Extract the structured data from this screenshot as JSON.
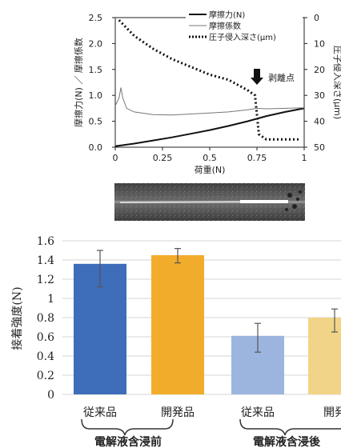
{
  "chart_data": [
    {
      "type": "line",
      "xlabel": "荷重(N)",
      "ylabel": "摩擦力(N) ／ 摩擦係数",
      "y2label": "圧子侵入深さ(μm)",
      "xlim": [
        0,
        1
      ],
      "ylim": [
        0,
        2.5
      ],
      "y2lim": [
        0,
        50
      ],
      "y2_inverted": true,
      "x_ticks": [
        "0",
        "0.25",
        "0.5",
        "0.75",
        "1"
      ],
      "y_ticks": [
        "0.0",
        "0.5",
        "1.0",
        "1.5",
        "2.0",
        "2.5"
      ],
      "y2_ticks": [
        "0",
        "10",
        "20",
        "30",
        "40",
        "50"
      ],
      "legend_position": "top-right",
      "annotation": "剥離点",
      "annotation_x": 0.75,
      "series": [
        {
          "name": "摩擦力(N)",
          "style": "solid-thick",
          "axis": "left",
          "x": [
            0,
            0.1,
            0.2,
            0.3,
            0.4,
            0.5,
            0.6,
            0.7,
            0.75,
            0.8,
            0.9,
            1.0
          ],
          "y": [
            0.02,
            0.07,
            0.13,
            0.19,
            0.26,
            0.33,
            0.41,
            0.5,
            0.55,
            0.6,
            0.68,
            0.75
          ]
        },
        {
          "name": "摩擦係数",
          "style": "solid-thin",
          "axis": "left",
          "x": [
            0,
            0.02,
            0.03,
            0.04,
            0.06,
            0.1,
            0.2,
            0.3,
            0.4,
            0.5,
            0.6,
            0.7,
            0.75,
            0.8,
            0.9,
            1.0
          ],
          "y": [
            0.8,
            0.95,
            1.15,
            0.95,
            0.75,
            0.68,
            0.63,
            0.62,
            0.64,
            0.66,
            0.68,
            0.72,
            0.75,
            0.74,
            0.75,
            0.76
          ]
        },
        {
          "name": "圧子侵入深さ(μm)",
          "style": "dotted",
          "axis": "right",
          "x": [
            0.02,
            0.1,
            0.2,
            0.3,
            0.4,
            0.5,
            0.6,
            0.7,
            0.74,
            0.76,
            0.8,
            0.9,
            0.97
          ],
          "y": [
            1,
            7,
            12,
            16,
            19,
            22,
            24,
            28,
            30,
            45,
            47,
            47,
            47
          ]
        }
      ]
    },
    {
      "type": "bar",
      "ylabel": "接着強度(N)",
      "ylim": [
        0,
        1.6
      ],
      "y_ticks": [
        "0",
        "0.2",
        "0.4",
        "0.6",
        "0.8",
        "1",
        "1.2",
        "1.4",
        "1.6"
      ],
      "categories": [
        "従来品",
        "開発品",
        "従来品",
        "開発"
      ],
      "groups": [
        "電解液含浸前",
        "電解液含浸後"
      ],
      "values": [
        1.36,
        1.45,
        0.61,
        0.8
      ],
      "error_low": [
        1.12,
        1.37,
        0.44,
        0.65
      ],
      "error_high": [
        1.5,
        1.52,
        0.74,
        0.89
      ],
      "colors": [
        "#3e6dba",
        "#f2ac2b",
        "#9cb5de",
        "#f1d487"
      ]
    }
  ],
  "image_strip": {
    "label": "scratch-track-micrograph"
  }
}
